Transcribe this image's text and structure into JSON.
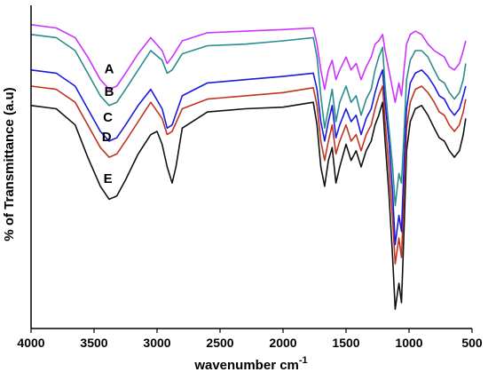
{
  "chart_data": {
    "type": "line",
    "title": "",
    "xlabel": "wavenumber cm",
    "xlabel_superscript": "-1",
    "ylabel": "% of Transmittance (a.u)",
    "x_reversed": true,
    "xlim": [
      4000,
      500
    ],
    "ylim": [
      0,
      100
    ],
    "x_ticks": [
      "4000",
      "3500",
      "3000",
      "2500",
      "2000",
      "1500",
      "1000",
      "500"
    ],
    "y_ticks_shown": false,
    "grid": false,
    "legend": "none",
    "series": [
      {
        "name": "A",
        "color": "#cc33ff",
        "points": [
          [
            4000,
            94
          ],
          [
            3800,
            93
          ],
          [
            3650,
            90
          ],
          [
            3550,
            84
          ],
          [
            3450,
            77
          ],
          [
            3380,
            74
          ],
          [
            3320,
            75
          ],
          [
            3250,
            79
          ],
          [
            3150,
            85
          ],
          [
            3050,
            90
          ],
          [
            2960,
            86
          ],
          [
            2920,
            82
          ],
          [
            2880,
            84
          ],
          [
            2800,
            89
          ],
          [
            2600,
            91.5
          ],
          [
            2300,
            92
          ],
          [
            2000,
            92.5
          ],
          [
            1760,
            93
          ],
          [
            1730,
            88
          ],
          [
            1700,
            80
          ],
          [
            1670,
            74
          ],
          [
            1640,
            80
          ],
          [
            1610,
            83
          ],
          [
            1580,
            77
          ],
          [
            1550,
            80
          ],
          [
            1500,
            84
          ],
          [
            1460,
            80
          ],
          [
            1420,
            82
          ],
          [
            1380,
            77
          ],
          [
            1340,
            81
          ],
          [
            1300,
            84
          ],
          [
            1270,
            88
          ],
          [
            1240,
            89
          ],
          [
            1210,
            91
          ],
          [
            1190,
            86
          ],
          [
            1160,
            80
          ],
          [
            1130,
            74
          ],
          [
            1110,
            70
          ],
          [
            1080,
            76
          ],
          [
            1060,
            72
          ],
          [
            1040,
            80
          ],
          [
            1020,
            88
          ],
          [
            990,
            91
          ],
          [
            950,
            92
          ],
          [
            900,
            91
          ],
          [
            850,
            88
          ],
          [
            800,
            86
          ],
          [
            760,
            85
          ],
          [
            720,
            84
          ],
          [
            680,
            81
          ],
          [
            640,
            80
          ],
          [
            600,
            82
          ],
          [
            570,
            86
          ],
          [
            550,
            89
          ]
        ]
      },
      {
        "name": "B",
        "color": "#2a8c8c",
        "points": [
          [
            4000,
            91
          ],
          [
            3800,
            90
          ],
          [
            3650,
            86
          ],
          [
            3550,
            79
          ],
          [
            3450,
            72
          ],
          [
            3380,
            69
          ],
          [
            3320,
            70
          ],
          [
            3250,
            74
          ],
          [
            3150,
            80
          ],
          [
            3050,
            86
          ],
          [
            2960,
            83
          ],
          [
            2920,
            79
          ],
          [
            2880,
            80
          ],
          [
            2800,
            85
          ],
          [
            2600,
            87.5
          ],
          [
            2300,
            88
          ],
          [
            2000,
            89
          ],
          [
            1760,
            90
          ],
          [
            1730,
            84
          ],
          [
            1700,
            72
          ],
          [
            1670,
            62
          ],
          [
            1640,
            68
          ],
          [
            1610,
            74
          ],
          [
            1580,
            64
          ],
          [
            1550,
            70
          ],
          [
            1500,
            75
          ],
          [
            1460,
            70
          ],
          [
            1420,
            72
          ],
          [
            1380,
            66
          ],
          [
            1340,
            71
          ],
          [
            1300,
            74
          ],
          [
            1270,
            80
          ],
          [
            1240,
            84
          ],
          [
            1210,
            87
          ],
          [
            1190,
            75
          ],
          [
            1160,
            62
          ],
          [
            1130,
            50
          ],
          [
            1110,
            38
          ],
          [
            1080,
            48
          ],
          [
            1060,
            45
          ],
          [
            1040,
            60
          ],
          [
            1020,
            77
          ],
          [
            990,
            83
          ],
          [
            950,
            86
          ],
          [
            900,
            86
          ],
          [
            850,
            84
          ],
          [
            800,
            80
          ],
          [
            760,
            77
          ],
          [
            720,
            76
          ],
          [
            680,
            73
          ],
          [
            640,
            71
          ],
          [
            600,
            73
          ],
          [
            570,
            77
          ],
          [
            550,
            82
          ]
        ]
      },
      {
        "name": "C",
        "color": "#1a1add",
        "points": [
          [
            4000,
            80
          ],
          [
            3800,
            79
          ],
          [
            3650,
            75
          ],
          [
            3550,
            68
          ],
          [
            3450,
            61
          ],
          [
            3380,
            58
          ],
          [
            3320,
            59
          ],
          [
            3250,
            63
          ],
          [
            3150,
            69
          ],
          [
            3050,
            74
          ],
          [
            2960,
            68
          ],
          [
            2920,
            62
          ],
          [
            2880,
            63
          ],
          [
            2800,
            72
          ],
          [
            2600,
            76
          ],
          [
            2300,
            77
          ],
          [
            2000,
            78
          ],
          [
            1760,
            79
          ],
          [
            1730,
            74
          ],
          [
            1700,
            64
          ],
          [
            1670,
            58
          ],
          [
            1640,
            64
          ],
          [
            1610,
            69
          ],
          [
            1580,
            59
          ],
          [
            1550,
            63
          ],
          [
            1500,
            68
          ],
          [
            1460,
            64
          ],
          [
            1420,
            66
          ],
          [
            1380,
            60
          ],
          [
            1340,
            65
          ],
          [
            1300,
            68
          ],
          [
            1270,
            73
          ],
          [
            1240,
            77
          ],
          [
            1210,
            80
          ],
          [
            1190,
            70
          ],
          [
            1160,
            58
          ],
          [
            1130,
            42
          ],
          [
            1110,
            26
          ],
          [
            1080,
            35
          ],
          [
            1060,
            30
          ],
          [
            1040,
            50
          ],
          [
            1020,
            68
          ],
          [
            990,
            76
          ],
          [
            950,
            79
          ],
          [
            900,
            80
          ],
          [
            850,
            78
          ],
          [
            800,
            75
          ],
          [
            760,
            72
          ],
          [
            720,
            71
          ],
          [
            680,
            68
          ],
          [
            640,
            66
          ],
          [
            600,
            68
          ],
          [
            570,
            72
          ],
          [
            550,
            75
          ]
        ]
      },
      {
        "name": "D",
        "color": "#c0341f",
        "points": [
          [
            4000,
            75
          ],
          [
            3800,
            74
          ],
          [
            3650,
            70
          ],
          [
            3550,
            63
          ],
          [
            3450,
            56
          ],
          [
            3380,
            53
          ],
          [
            3320,
            54
          ],
          [
            3250,
            58
          ],
          [
            3150,
            64
          ],
          [
            3050,
            70
          ],
          [
            2960,
            65
          ],
          [
            2920,
            60
          ],
          [
            2880,
            61
          ],
          [
            2800,
            68
          ],
          [
            2600,
            71
          ],
          [
            2300,
            72
          ],
          [
            2000,
            73
          ],
          [
            1760,
            74.5
          ],
          [
            1730,
            69
          ],
          [
            1700,
            58
          ],
          [
            1670,
            52
          ],
          [
            1640,
            58
          ],
          [
            1610,
            63
          ],
          [
            1580,
            54
          ],
          [
            1550,
            58
          ],
          [
            1500,
            63
          ],
          [
            1460,
            58
          ],
          [
            1420,
            60
          ],
          [
            1380,
            55
          ],
          [
            1340,
            60
          ],
          [
            1300,
            63
          ],
          [
            1270,
            68
          ],
          [
            1240,
            72
          ],
          [
            1210,
            75
          ],
          [
            1190,
            64
          ],
          [
            1160,
            50
          ],
          [
            1130,
            34
          ],
          [
            1110,
            20
          ],
          [
            1080,
            28
          ],
          [
            1060,
            22
          ],
          [
            1040,
            42
          ],
          [
            1020,
            62
          ],
          [
            990,
            70
          ],
          [
            950,
            74
          ],
          [
            900,
            75
          ],
          [
            850,
            73
          ],
          [
            800,
            70
          ],
          [
            760,
            67
          ],
          [
            720,
            66
          ],
          [
            680,
            63
          ],
          [
            640,
            61
          ],
          [
            600,
            63
          ],
          [
            570,
            67
          ],
          [
            550,
            71
          ]
        ]
      },
      {
        "name": "E",
        "color": "#111111",
        "points": [
          [
            4000,
            69
          ],
          [
            3800,
            68
          ],
          [
            3650,
            63
          ],
          [
            3550,
            53
          ],
          [
            3450,
            44
          ],
          [
            3380,
            40
          ],
          [
            3320,
            41
          ],
          [
            3250,
            46
          ],
          [
            3150,
            54
          ],
          [
            3050,
            60
          ],
          [
            3000,
            61
          ],
          [
            2960,
            57
          ],
          [
            2920,
            50
          ],
          [
            2880,
            45
          ],
          [
            2850,
            50
          ],
          [
            2800,
            62
          ],
          [
            2600,
            67
          ],
          [
            2300,
            68
          ],
          [
            2000,
            68.5
          ],
          [
            1760,
            70
          ],
          [
            1730,
            63
          ],
          [
            1700,
            50
          ],
          [
            1670,
            44
          ],
          [
            1640,
            52
          ],
          [
            1610,
            56
          ],
          [
            1580,
            45
          ],
          [
            1550,
            50
          ],
          [
            1500,
            57
          ],
          [
            1460,
            52
          ],
          [
            1420,
            55
          ],
          [
            1380,
            50
          ],
          [
            1340,
            55
          ],
          [
            1300,
            58
          ],
          [
            1270,
            63
          ],
          [
            1240,
            66
          ],
          [
            1210,
            70
          ],
          [
            1190,
            58
          ],
          [
            1160,
            42
          ],
          [
            1130,
            22
          ],
          [
            1110,
            6
          ],
          [
            1080,
            14
          ],
          [
            1060,
            8
          ],
          [
            1040,
            30
          ],
          [
            1020,
            55
          ],
          [
            990,
            64
          ],
          [
            950,
            68
          ],
          [
            900,
            69
          ],
          [
            850,
            66
          ],
          [
            800,
            62
          ],
          [
            760,
            59
          ],
          [
            720,
            58
          ],
          [
            680,
            55
          ],
          [
            640,
            53
          ],
          [
            600,
            55
          ],
          [
            570,
            60
          ],
          [
            550,
            65
          ]
        ]
      }
    ],
    "annotations": [
      {
        "text": "A",
        "x": 3380,
        "y": 79
      },
      {
        "text": "B",
        "x": 3380,
        "y": 72
      },
      {
        "text": "C",
        "x": 3390,
        "y": 64
      },
      {
        "text": "D",
        "x": 3400,
        "y": 58
      },
      {
        "text": "E",
        "x": 3390,
        "y": 45
      }
    ]
  }
}
